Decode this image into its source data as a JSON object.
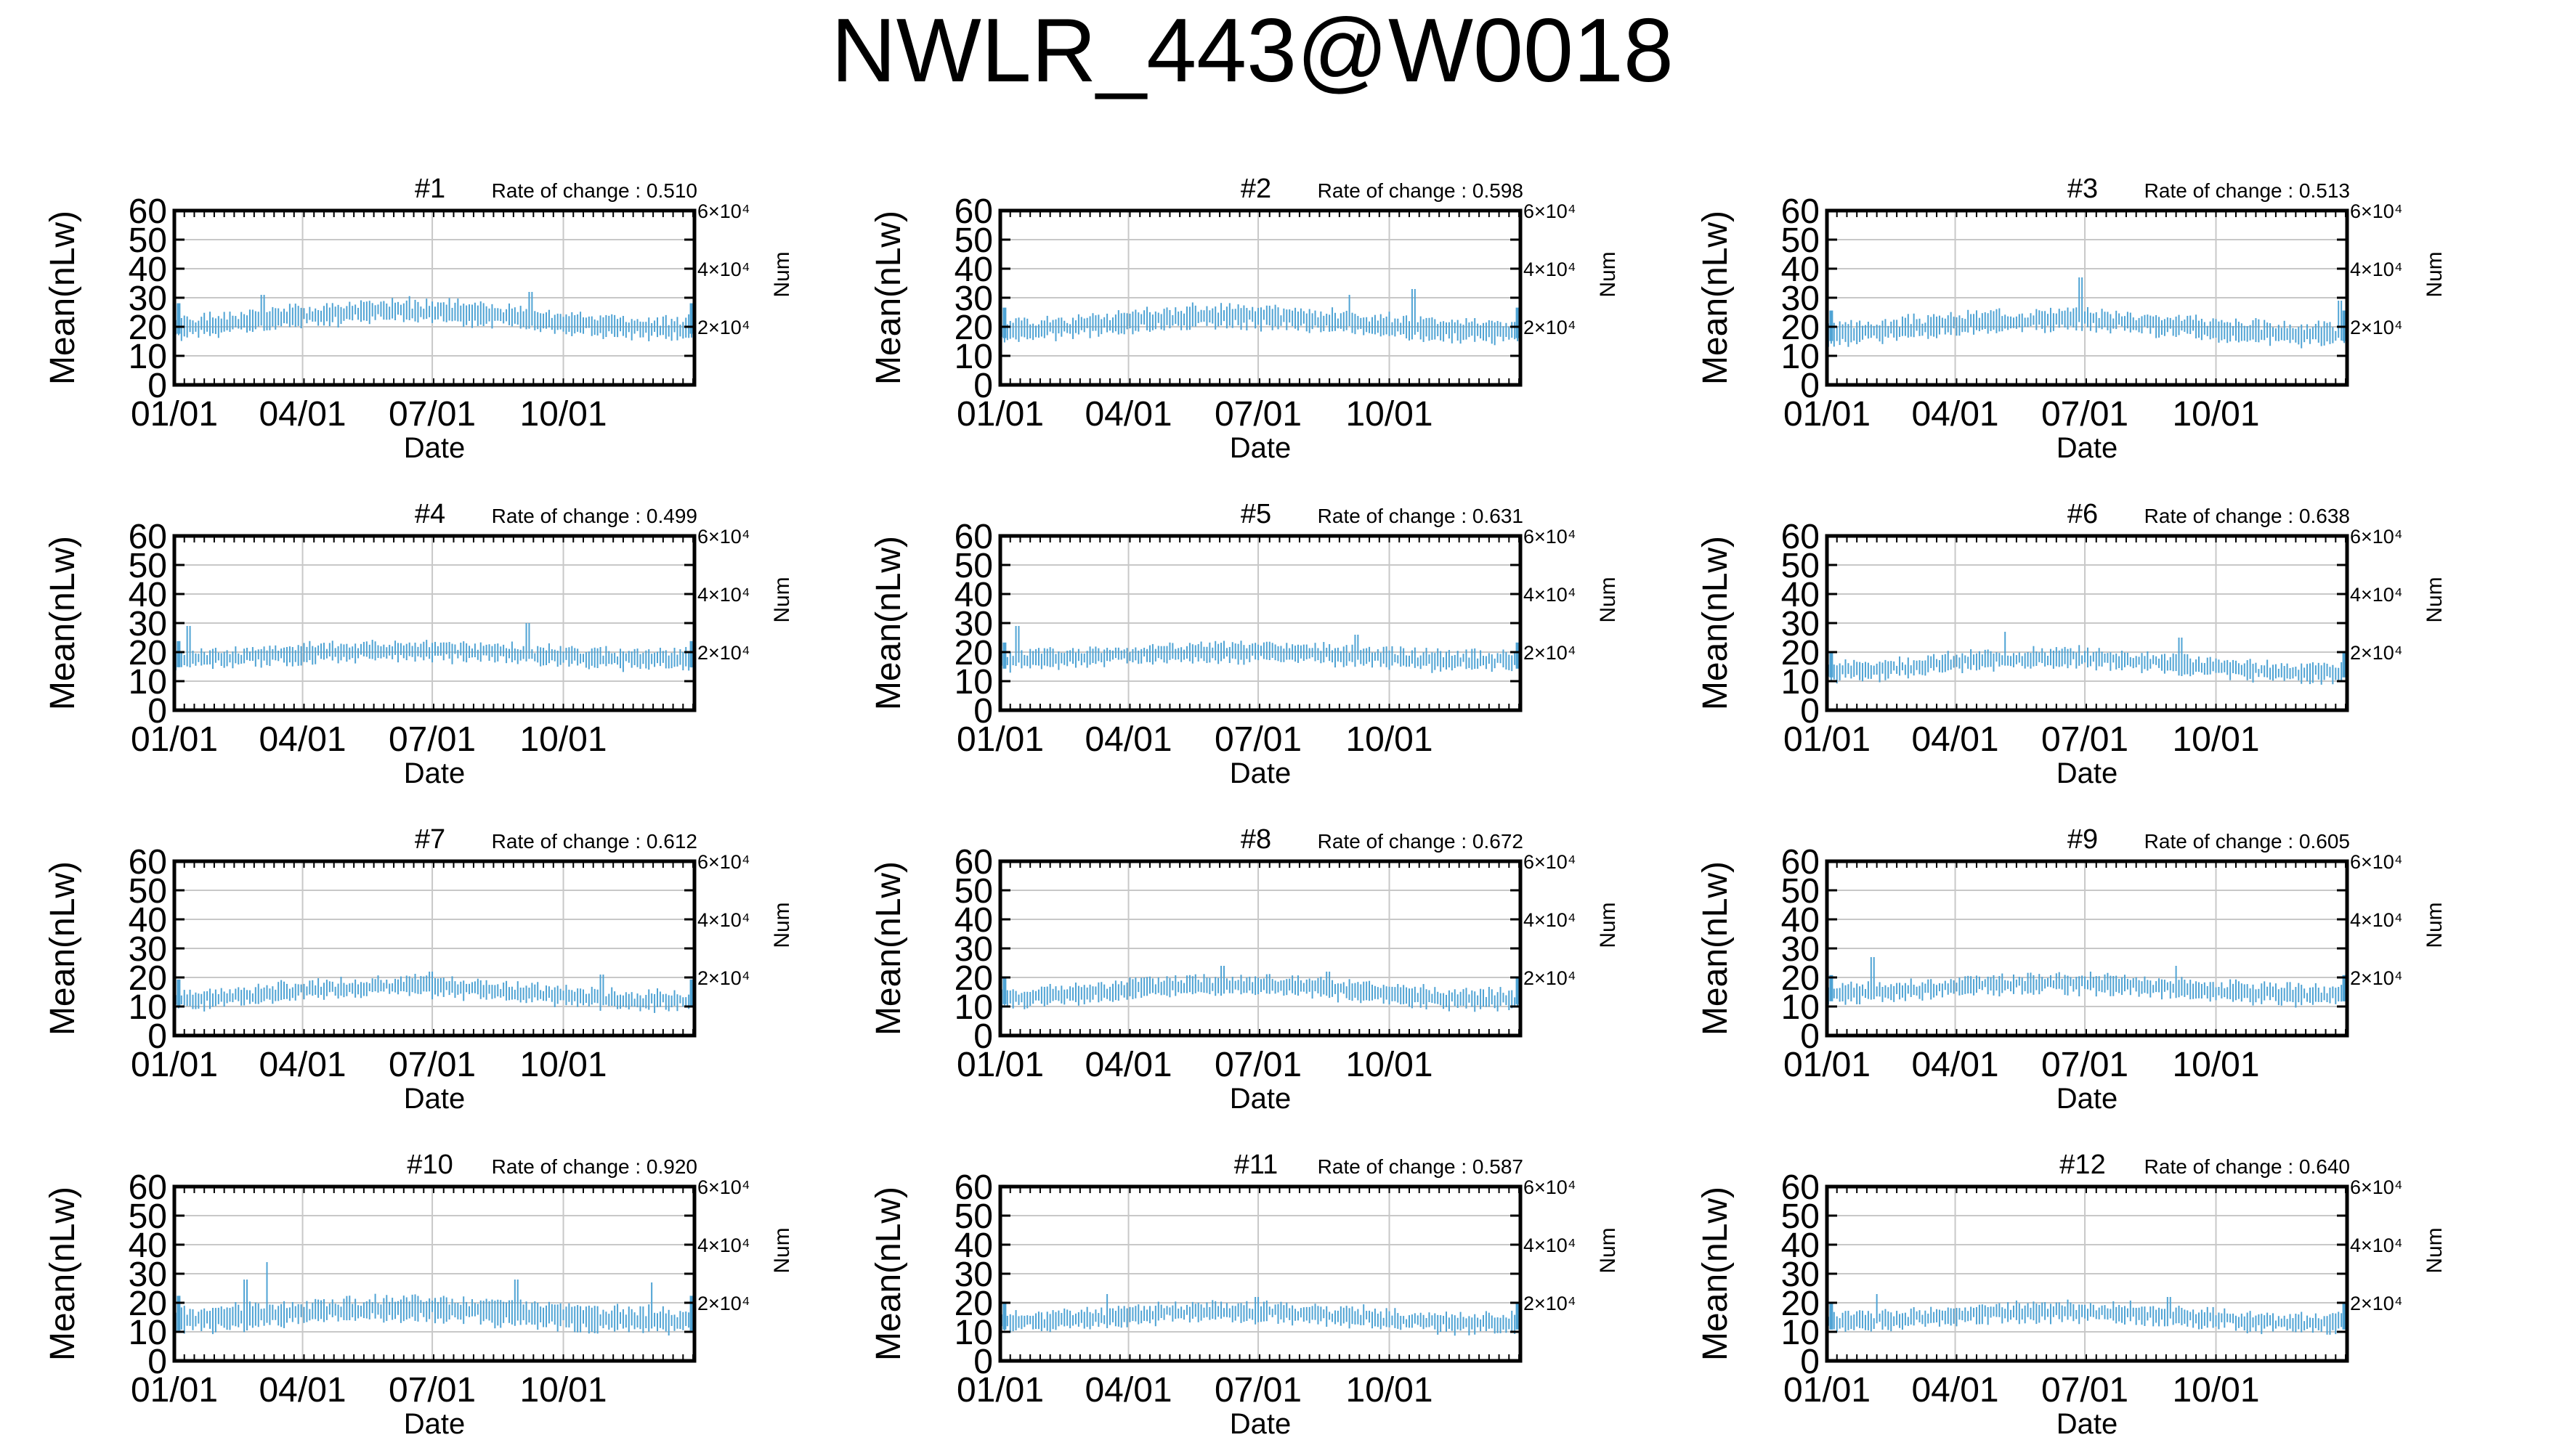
{
  "title": "NWLR_443@W0018",
  "colors": {
    "series": "#4fa3d4",
    "grid": "#c8c8c8",
    "frame": "#000000",
    "background": "#ffffff"
  },
  "chart_data": [
    {
      "type": "line",
      "panel_label": "#1",
      "rate_of_change": "Rate of change : 0.510",
      "baseline": 22.5,
      "amplitude": 3.0,
      "variability": 3.5,
      "drift": 0.0,
      "spikes": [
        [
          62,
          31
        ],
        [
          250,
          32
        ]
      ],
      "seed": 1,
      "xlabel": "Date",
      "ylabel": "Mean(nLw)",
      "y2label": "Num",
      "xticks": [
        "01/01",
        "04/01",
        "07/01",
        "10/01"
      ],
      "yticks": [
        "0",
        "10",
        "20",
        "30",
        "40",
        "50",
        "60"
      ],
      "y2ticks": [
        "2×10⁴",
        "4×10⁴",
        "6×10⁴"
      ],
      "ylim": [
        0,
        60
      ],
      "y2lim": [
        0,
        60000
      ],
      "x_domain_days": [
        0,
        365
      ],
      "grid": "on"
    },
    {
      "type": "line",
      "panel_label": "#2",
      "rate_of_change": "Rate of change : 0.598",
      "baseline": 21.0,
      "amplitude": 2.5,
      "variability": 3.5,
      "drift": 0.0,
      "spikes": [
        [
          290,
          33
        ],
        [
          245,
          31
        ]
      ],
      "seed": 2,
      "xlabel": "Date",
      "ylabel": "Mean(nLw)",
      "y2label": "Num",
      "xticks": [
        "01/01",
        "04/01",
        "07/01",
        "10/01"
      ],
      "yticks": [
        "0",
        "10",
        "20",
        "30",
        "40",
        "50",
        "60"
      ],
      "y2ticks": [
        "2×10⁴",
        "4×10⁴",
        "6×10⁴"
      ],
      "ylim": [
        0,
        60
      ],
      "y2lim": [
        0,
        60000
      ],
      "x_domain_days": [
        0,
        365
      ],
      "grid": "on"
    },
    {
      "type": "line",
      "panel_label": "#3",
      "rate_of_change": "Rate of change : 0.513",
      "baseline": 20.0,
      "amplitude": 2.5,
      "variability": 3.5,
      "drift": 0.0,
      "spikes": [
        [
          178,
          37
        ],
        [
          360,
          29
        ]
      ],
      "seed": 3,
      "xlabel": "Date",
      "ylabel": "Mean(nLw)",
      "y2label": "Num",
      "xticks": [
        "01/01",
        "04/01",
        "07/01",
        "10/01"
      ],
      "yticks": [
        "0",
        "10",
        "20",
        "30",
        "40",
        "50",
        "60"
      ],
      "y2ticks": [
        "2×10⁴",
        "4×10⁴",
        "6×10⁴"
      ],
      "ylim": [
        0,
        60
      ],
      "y2lim": [
        0,
        60000
      ],
      "x_domain_days": [
        0,
        365
      ],
      "grid": "on"
    },
    {
      "type": "line",
      "panel_label": "#4",
      "rate_of_change": "Rate of change : 0.499",
      "baseline": 19.0,
      "amplitude": 1.5,
      "variability": 3.0,
      "drift": 0.0,
      "spikes": [
        [
          10,
          29
        ],
        [
          248,
          30
        ]
      ],
      "seed": 4,
      "xlabel": "Date",
      "ylabel": "Mean(nLw)",
      "y2label": "Num",
      "xticks": [
        "01/01",
        "04/01",
        "07/01",
        "10/01"
      ],
      "yticks": [
        "0",
        "10",
        "20",
        "30",
        "40",
        "50",
        "60"
      ],
      "y2ticks": [
        "2×10⁴",
        "4×10⁴",
        "6×10⁴"
      ],
      "ylim": [
        0,
        60
      ],
      "y2lim": [
        0,
        60000
      ],
      "x_domain_days": [
        0,
        365
      ],
      "grid": "on"
    },
    {
      "type": "line",
      "panel_label": "#5",
      "rate_of_change": "Rate of change : 0.631",
      "baseline": 18.5,
      "amplitude": 1.5,
      "variability": 3.0,
      "drift": 0.0,
      "spikes": [
        [
          12,
          29
        ],
        [
          250,
          26
        ]
      ],
      "seed": 5,
      "xlabel": "Date",
      "ylabel": "Mean(nLw)",
      "y2label": "Num",
      "xticks": [
        "01/01",
        "04/01",
        "07/01",
        "10/01"
      ],
      "yticks": [
        "0",
        "10",
        "20",
        "30",
        "40",
        "50",
        "60"
      ],
      "y2ticks": [
        "2×10⁴",
        "4×10⁴",
        "6×10⁴"
      ],
      "ylim": [
        0,
        60
      ],
      "y2lim": [
        0,
        60000
      ],
      "x_domain_days": [
        0,
        365
      ],
      "grid": "on"
    },
    {
      "type": "line",
      "panel_label": "#6",
      "rate_of_change": "Rate of change : 0.638",
      "baseline": 15.5,
      "amplitude": 2.5,
      "variability": 3.0,
      "drift": 0.0,
      "spikes": [
        [
          125,
          27
        ],
        [
          248,
          25
        ]
      ],
      "seed": 6,
      "xlabel": "Date",
      "ylabel": "Mean(nLw)",
      "y2label": "Num",
      "xticks": [
        "01/01",
        "04/01",
        "07/01",
        "10/01"
      ],
      "yticks": [
        "0",
        "10",
        "20",
        "30",
        "40",
        "50",
        "60"
      ],
      "y2ticks": [
        "2×10⁴",
        "4×10⁴",
        "6×10⁴"
      ],
      "ylim": [
        0,
        60
      ],
      "y2lim": [
        0,
        60000
      ],
      "x_domain_days": [
        0,
        365
      ],
      "grid": "on"
    },
    {
      "type": "line",
      "panel_label": "#7",
      "rate_of_change": "Rate of change : 0.612",
      "baseline": 14.5,
      "amplitude": 2.5,
      "variability": 3.0,
      "drift": 0.0,
      "spikes": [
        [
          180,
          22
        ],
        [
          300,
          21
        ]
      ],
      "seed": 7,
      "xlabel": "Date",
      "ylabel": "Mean(nLw)",
      "y2label": "Num",
      "xticks": [
        "01/01",
        "04/01",
        "07/01",
        "10/01"
      ],
      "yticks": [
        "0",
        "10",
        "20",
        "30",
        "40",
        "50",
        "60"
      ],
      "y2ticks": [
        "2×10⁴",
        "4×10⁴",
        "6×10⁴"
      ],
      "ylim": [
        0,
        60
      ],
      "y2lim": [
        0,
        60000
      ],
      "x_domain_days": [
        0,
        365
      ],
      "grid": "on"
    },
    {
      "type": "line",
      "panel_label": "#8",
      "rate_of_change": "Rate of change : 0.672",
      "baseline": 15.0,
      "amplitude": 2.5,
      "variability": 3.0,
      "drift": 0.0,
      "spikes": [
        [
          156,
          24
        ],
        [
          230,
          22
        ]
      ],
      "seed": 8,
      "xlabel": "Date",
      "ylabel": "Mean(nLw)",
      "y2label": "Num",
      "xticks": [
        "01/01",
        "04/01",
        "07/01",
        "10/01"
      ],
      "yticks": [
        "0",
        "10",
        "20",
        "30",
        "40",
        "50",
        "60"
      ],
      "y2ticks": [
        "2×10⁴",
        "4×10⁴",
        "6×10⁴"
      ],
      "ylim": [
        0,
        60
      ],
      "y2lim": [
        0,
        60000
      ],
      "x_domain_days": [
        0,
        365
      ],
      "grid": "on"
    },
    {
      "type": "line",
      "panel_label": "#9",
      "rate_of_change": "Rate of change : 0.605",
      "baseline": 16.0,
      "amplitude": 2.0,
      "variability": 3.0,
      "drift": 0.0,
      "spikes": [
        [
          32,
          27
        ],
        [
          245,
          24
        ]
      ],
      "seed": 9,
      "xlabel": "Date",
      "ylabel": "Mean(nLw)",
      "y2label": "Num",
      "xticks": [
        "01/01",
        "04/01",
        "07/01",
        "10/01"
      ],
      "yticks": [
        "0",
        "10",
        "20",
        "30",
        "40",
        "50",
        "60"
      ],
      "y2ticks": [
        "2×10⁴",
        "4×10⁴",
        "6×10⁴"
      ],
      "ylim": [
        0,
        60
      ],
      "y2lim": [
        0,
        60000
      ],
      "x_domain_days": [
        0,
        365
      ],
      "grid": "on"
    },
    {
      "type": "line",
      "panel_label": "#10",
      "rate_of_change": "Rate of change : 0.920",
      "baseline": 16.0,
      "amplitude": 2.0,
      "variability": 4.0,
      "drift": 0.0,
      "spikes": [
        [
          65,
          34
        ],
        [
          50,
          28
        ],
        [
          240,
          28
        ],
        [
          335,
          27
        ]
      ],
      "seed": 10,
      "xlabel": "Date",
      "ylabel": "Mean(nLw)",
      "y2label": "Num",
      "xticks": [
        "01/01",
        "04/01",
        "07/01",
        "10/01"
      ],
      "yticks": [
        "0",
        "10",
        "20",
        "30",
        "40",
        "50",
        "60"
      ],
      "y2ticks": [
        "2×10⁴",
        "4×10⁴",
        "6×10⁴"
      ],
      "ylim": [
        0,
        60
      ],
      "y2lim": [
        0,
        60000
      ],
      "x_domain_days": [
        0,
        365
      ],
      "grid": "on"
    },
    {
      "type": "line",
      "panel_label": "#11",
      "rate_of_change": "Rate of change : 0.587",
      "baseline": 15.0,
      "amplitude": 2.0,
      "variability": 3.0,
      "drift": 0.0,
      "spikes": [
        [
          75,
          23
        ],
        [
          180,
          22
        ]
      ],
      "seed": 11,
      "xlabel": "Date",
      "ylabel": "Mean(nLw)",
      "y2label": "Num",
      "xticks": [
        "01/01",
        "04/01",
        "07/01",
        "10/01"
      ],
      "yticks": [
        "0",
        "10",
        "20",
        "30",
        "40",
        "50",
        "60"
      ],
      "y2ticks": [
        "2×10⁴",
        "4×10⁴",
        "6×10⁴"
      ],
      "ylim": [
        0,
        60
      ],
      "y2lim": [
        0,
        60000
      ],
      "x_domain_days": [
        0,
        365
      ],
      "grid": "on"
    },
    {
      "type": "line",
      "panel_label": "#12",
      "rate_of_change": "Rate of change : 0.640",
      "baseline": 15.0,
      "amplitude": 2.0,
      "variability": 3.0,
      "drift": 0.0,
      "spikes": [
        [
          35,
          23
        ],
        [
          240,
          22
        ]
      ],
      "seed": 12,
      "xlabel": "Date",
      "ylabel": "Mean(nLw)",
      "y2label": "Num",
      "xticks": [
        "01/01",
        "04/01",
        "07/01",
        "10/01"
      ],
      "yticks": [
        "0",
        "10",
        "20",
        "30",
        "40",
        "50",
        "60"
      ],
      "y2ticks": [
        "2×10⁴",
        "4×10⁴",
        "6×10⁴"
      ],
      "ylim": [
        0,
        60
      ],
      "y2lim": [
        0,
        60000
      ],
      "x_domain_days": [
        0,
        365
      ],
      "grid": "on"
    }
  ]
}
